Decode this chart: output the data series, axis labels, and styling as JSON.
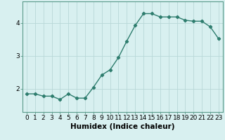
{
  "x": [
    0,
    1,
    2,
    3,
    4,
    5,
    6,
    7,
    8,
    9,
    10,
    11,
    12,
    13,
    14,
    15,
    16,
    17,
    18,
    19,
    20,
    21,
    22,
    23
  ],
  "y": [
    1.85,
    1.85,
    1.78,
    1.78,
    1.68,
    1.85,
    1.72,
    1.72,
    2.05,
    2.42,
    2.58,
    2.95,
    3.45,
    3.92,
    4.28,
    4.28,
    4.18,
    4.18,
    4.18,
    4.08,
    4.05,
    4.05,
    3.88,
    3.52
  ],
  "line_color": "#2e7d6e",
  "marker": "D",
  "markersize": 2.2,
  "linewidth": 1.0,
  "bg_color": "#d8f0f0",
  "grid_color": "#b8d8d8",
  "xlabel": "Humidex (Indice chaleur)",
  "xlabel_fontsize": 7.5,
  "tick_fontsize": 6.5,
  "yticks": [
    2,
    3,
    4
  ],
  "ylim": [
    1.3,
    4.65
  ],
  "xlim": [
    -0.5,
    23.5
  ]
}
